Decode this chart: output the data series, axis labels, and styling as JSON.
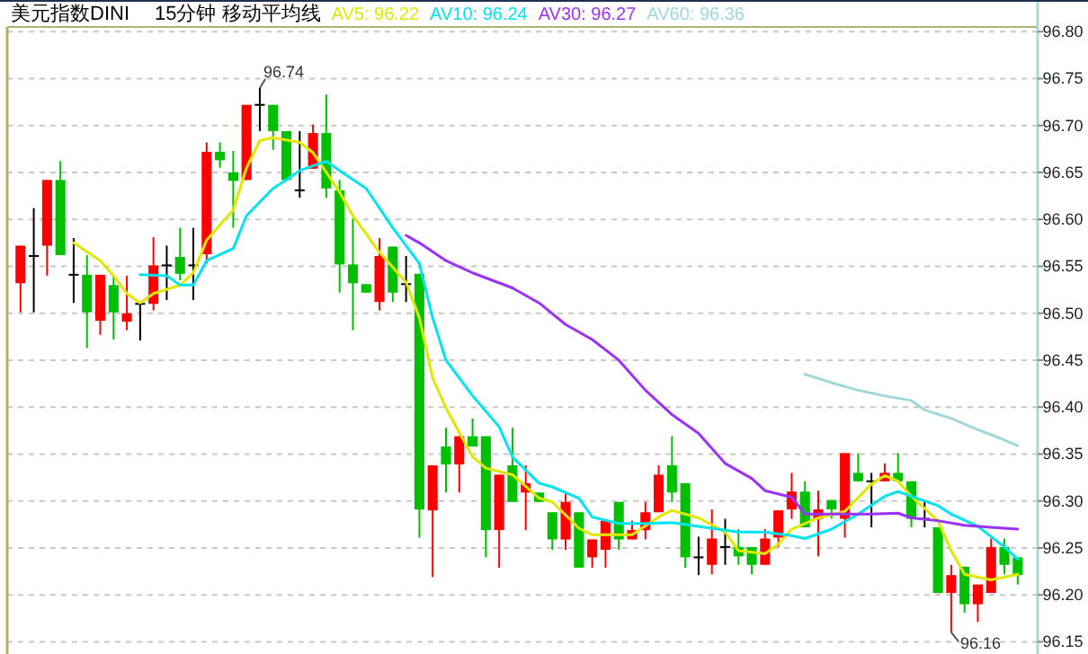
{
  "chart_data": {
    "type": "candlestick",
    "title": "美元指数DINI",
    "subtitle": "15分钟 移动平均线",
    "categories": [
      null,
      null,
      null,
      null,
      null,
      null,
      null,
      null,
      null,
      null,
      null,
      null,
      null,
      null,
      null,
      null,
      null,
      null,
      null,
      null,
      null,
      null,
      null,
      null,
      null,
      null,
      null,
      null,
      null,
      null,
      null,
      null,
      null,
      null,
      null,
      null,
      null,
      null,
      null,
      null,
      null,
      null,
      null,
      null,
      null,
      null,
      null,
      null,
      null,
      null,
      null,
      null,
      null,
      null,
      null,
      null,
      null,
      null,
      null,
      null,
      null,
      null,
      null,
      null,
      null,
      null,
      null,
      null,
      null,
      null,
      null,
      null,
      null,
      null,
      null,
      null
    ],
    "ohlc": [
      [
        96.532,
        96.572,
        96.501,
        96.572
      ],
      [
        96.561,
        96.612,
        96.501,
        96.561
      ],
      [
        96.572,
        96.642,
        96.54,
        96.642
      ],
      [
        96.642,
        96.662,
        96.562,
        96.562
      ],
      [
        96.541,
        96.58,
        96.511,
        96.541
      ],
      [
        96.541,
        96.562,
        96.463,
        96.501
      ],
      [
        96.492,
        96.541,
        96.477,
        96.541
      ],
      [
        96.53,
        96.541,
        96.472,
        96.501
      ],
      [
        96.491,
        96.54,
        96.482,
        96.5
      ],
      [
        96.51,
        96.51,
        96.471,
        96.51
      ],
      [
        96.51,
        96.581,
        96.503,
        96.551
      ],
      [
        96.551,
        96.572,
        96.514,
        96.551
      ],
      [
        96.56,
        96.591,
        96.535,
        96.542
      ],
      [
        96.551,
        96.591,
        96.514,
        96.551
      ],
      [
        96.563,
        96.682,
        96.553,
        96.672
      ],
      [
        96.672,
        96.682,
        96.655,
        96.663
      ],
      [
        96.65,
        96.673,
        96.591,
        96.641
      ],
      [
        96.642,
        96.722,
        96.642,
        96.722
      ],
      [
        96.722,
        96.74,
        96.694,
        96.722
      ],
      [
        96.722,
        96.722,
        96.674,
        96.694
      ],
      [
        96.694,
        96.694,
        96.642,
        96.642
      ],
      [
        96.631,
        96.694,
        96.623,
        96.631
      ],
      [
        96.654,
        96.701,
        96.654,
        96.692
      ],
      [
        96.692,
        96.733,
        96.623,
        96.633
      ],
      [
        96.631,
        96.642,
        96.522,
        96.552
      ],
      [
        96.552,
        96.601,
        96.482,
        96.532
      ],
      [
        96.531,
        96.531,
        96.522,
        96.522
      ],
      [
        96.512,
        96.58,
        96.503,
        96.561
      ],
      [
        96.571,
        96.571,
        96.512,
        96.522
      ],
      [
        96.531,
        96.561,
        96.512,
        96.531
      ],
      [
        96.542,
        96.542,
        96.261,
        96.291
      ],
      [
        96.29,
        96.338,
        96.219,
        96.338
      ],
      [
        96.358,
        96.378,
        96.309,
        96.339
      ],
      [
        96.339,
        96.369,
        96.309,
        96.369
      ],
      [
        96.369,
        96.388,
        96.358,
        96.358
      ],
      [
        96.369,
        96.369,
        96.24,
        96.269
      ],
      [
        96.269,
        96.328,
        96.229,
        96.328
      ],
      [
        96.338,
        96.378,
        96.299,
        96.299
      ],
      [
        96.309,
        96.338,
        96.269,
        96.319
      ],
      [
        96.309,
        96.309,
        96.299,
        96.299
      ],
      [
        96.288,
        96.288,
        96.248,
        96.259
      ],
      [
        96.259,
        96.308,
        96.248,
        96.299
      ],
      [
        96.288,
        96.288,
        96.229,
        96.229
      ],
      [
        96.24,
        96.259,
        96.229,
        96.259
      ],
      [
        96.248,
        96.279,
        96.229,
        96.279
      ],
      [
        96.299,
        96.299,
        96.248,
        96.259
      ],
      [
        96.259,
        96.279,
        96.259,
        96.269
      ],
      [
        96.269,
        96.299,
        96.259,
        96.288
      ],
      [
        96.288,
        96.338,
        96.288,
        96.328
      ],
      [
        96.338,
        96.369,
        96.299,
        96.309
      ],
      [
        96.319,
        96.319,
        96.229,
        96.24
      ],
      [
        96.24,
        96.262,
        96.221,
        96.24
      ],
      [
        96.232,
        96.291,
        96.222,
        96.26
      ],
      [
        96.251,
        96.281,
        96.232,
        96.251
      ],
      [
        96.251,
        96.27,
        96.232,
        96.241
      ],
      [
        96.251,
        96.251,
        96.222,
        96.232
      ],
      [
        96.232,
        96.27,
        96.232,
        96.26
      ],
      [
        96.261,
        96.29,
        96.251,
        96.29
      ],
      [
        96.291,
        96.33,
        96.281,
        96.31
      ],
      [
        96.31,
        96.321,
        96.272,
        96.272
      ],
      [
        96.281,
        96.311,
        96.241,
        96.291
      ],
      [
        96.301,
        96.301,
        96.281,
        96.291
      ],
      [
        96.281,
        96.351,
        96.261,
        96.351
      ],
      [
        96.33,
        96.351,
        96.321,
        96.321
      ],
      [
        96.321,
        96.33,
        96.272,
        96.321
      ],
      [
        96.321,
        96.34,
        96.321,
        96.33
      ],
      [
        96.33,
        96.351,
        96.321,
        96.321
      ],
      [
        96.321,
        96.321,
        96.272,
        96.281
      ],
      [
        96.281,
        96.301,
        96.272,
        96.281
      ],
      [
        96.272,
        96.272,
        96.202,
        96.202
      ],
      [
        96.202,
        96.232,
        96.16,
        96.221
      ],
      [
        96.23,
        96.23,
        96.181,
        96.19
      ],
      [
        96.19,
        96.211,
        96.171,
        96.211
      ],
      [
        96.202,
        96.26,
        96.202,
        96.251
      ],
      [
        96.251,
        96.26,
        96.222,
        96.232
      ],
      [
        96.24,
        96.24,
        96.211,
        96.221
      ]
    ],
    "colors": [
      "#ff0000",
      "#000000",
      "#ff0000",
      "#00c000",
      "#000000",
      "#00c000",
      "#ff0000",
      "#00c000",
      "#ff0000",
      "#000000",
      "#ff0000",
      "#000000",
      "#00c000",
      "#000000",
      "#ff0000",
      "#00c000",
      "#00c000",
      "#ff0000",
      "#000000",
      "#00c000",
      "#00c000",
      "#000000",
      "#ff0000",
      "#00c000",
      "#00c000",
      "#00c000",
      "#00c000",
      "#ff0000",
      "#00c000",
      "#000000",
      "#00c000",
      "#ff0000",
      "#00c000",
      "#ff0000",
      "#00c000",
      "#00c000",
      "#ff0000",
      "#00c000",
      "#ff0000",
      "#00c000",
      "#00c000",
      "#ff0000",
      "#00c000",
      "#ff0000",
      "#ff0000",
      "#00c000",
      "#ff0000",
      "#ff0000",
      "#ff0000",
      "#00c000",
      "#00c000",
      "#000000",
      "#ff0000",
      "#000000",
      "#00c000",
      "#00c000",
      "#ff0000",
      "#ff0000",
      "#ff0000",
      "#00c000",
      "#ff0000",
      "#00c000",
      "#ff0000",
      "#00c000",
      "#000000",
      "#ff0000",
      "#00c000",
      "#00c000",
      "#000000",
      "#00c000",
      "#ff0000",
      "#00c000",
      "#ff0000",
      "#ff0000",
      "#00c000",
      "#00c000"
    ],
    "series": [
      {
        "name": "AV5: 96.22",
        "type": "line",
        "color": "#e0e800",
        "values": [
          null,
          null,
          null,
          null,
          96.575,
          null,
          96.556,
          96.54,
          96.521,
          96.511,
          96.521,
          null,
          96.53,
          96.543,
          96.578,
          null,
          96.61,
          96.655,
          96.684,
          96.687,
          null,
          96.682,
          96.671,
          null,
          96.629,
          96.604,
          null,
          96.565,
          null,
          96.533,
          96.495,
          96.431,
          96.399,
          null,
          96.347,
          96.335,
          null,
          96.328,
          null,
          96.303,
          96.299,
          null,
          96.271,
          96.264,
          null,
          96.264,
          96.264,
          null,
          96.283,
          96.29,
          null,
          96.282,
          null,
          96.267,
          96.247,
          null,
          96.244,
          96.254,
          96.27,
          null,
          96.282,
          null,
          96.289,
          null,
          96.318,
          96.327,
          96.321,
          96.305,
          null,
          96.279,
          96.247,
          96.222,
          null,
          96.216,
          null,
          96.222
        ]
      },
      {
        "name": "AV10: 96.24",
        "type": "line",
        "color": "#00e4f0",
        "values": [
          null,
          null,
          null,
          null,
          null,
          null,
          null,
          null,
          null,
          96.541,
          null,
          96.54,
          96.53,
          96.53,
          96.556,
          null,
          96.569,
          96.604,
          null,
          96.633,
          96.642,
          96.652,
          null,
          96.662,
          96.652,
          null,
          96.633,
          null,
          96.591,
          null,
          96.553,
          96.495,
          96.45,
          null,
          96.412,
          null,
          96.379,
          96.347,
          null,
          96.319,
          96.315,
          null,
          96.303,
          96.283,
          null,
          96.276,
          null,
          96.276,
          null,
          96.277,
          null,
          96.273,
          null,
          null,
          96.267,
          null,
          96.267,
          null,
          96.263,
          96.26,
          null,
          96.27,
          null,
          96.286,
          null,
          96.305,
          96.31,
          96.305,
          null,
          96.295,
          96.286,
          null,
          96.273,
          null,
          96.251,
          96.238
        ]
      },
      {
        "name": "AV30: 96.27",
        "type": "line",
        "color": "#9b30ff",
        "values": [
          null,
          null,
          null,
          null,
          null,
          null,
          null,
          null,
          null,
          null,
          null,
          null,
          null,
          null,
          null,
          null,
          null,
          null,
          null,
          null,
          null,
          null,
          null,
          null,
          null,
          null,
          null,
          null,
          null,
          96.583,
          96.575,
          null,
          96.556,
          null,
          96.543,
          null,
          null,
          96.527,
          null,
          96.511,
          null,
          96.488,
          null,
          96.472,
          null,
          96.45,
          null,
          96.418,
          null,
          96.392,
          null,
          96.372,
          null,
          96.34,
          null,
          96.324,
          96.311,
          null,
          96.304,
          96.286,
          null,
          96.286,
          null,
          null,
          96.286,
          null,
          96.287,
          96.282,
          null,
          96.279,
          null,
          96.274,
          null,
          96.272,
          null,
          96.27
        ]
      },
      {
        "name": "AV60: 96.36",
        "type": "line",
        "color": "#a0d8dc",
        "values": [
          null,
          null,
          null,
          null,
          null,
          null,
          null,
          null,
          null,
          null,
          null,
          null,
          null,
          null,
          null,
          null,
          null,
          null,
          null,
          null,
          null,
          null,
          null,
          null,
          null,
          null,
          null,
          null,
          null,
          null,
          null,
          null,
          null,
          null,
          null,
          null,
          null,
          null,
          null,
          null,
          null,
          null,
          null,
          null,
          null,
          null,
          null,
          null,
          null,
          null,
          null,
          null,
          null,
          null,
          null,
          null,
          null,
          null,
          null,
          96.435,
          null,
          96.426,
          null,
          96.418,
          null,
          96.412,
          null,
          96.407,
          96.397,
          null,
          96.388,
          null,
          96.376,
          null,
          96.365,
          96.359
        ]
      }
    ],
    "ylim": [
      96.137,
      96.805
    ],
    "yticks": [
      {
        "value": 96.15,
        "label": "96.15"
      },
      {
        "value": 96.2,
        "label": "96.20"
      },
      96.25,
      {
        "value": 96.3,
        "label": "96.30"
      },
      96.35,
      {
        "value": 96.4,
        "label": "96.40"
      },
      96.45,
      {
        "value": 96.5,
        "label": "96.50"
      },
      96.55,
      {
        "value": 96.6,
        "label": "96.60"
      },
      96.65,
      {
        "value": 96.7,
        "label": "96.70"
      },
      96.75,
      {
        "value": 96.8,
        "label": "96.80"
      }
    ],
    "grid": "y",
    "legend": "top",
    "annotations": [
      "96.74",
      "96.16"
    ]
  }
}
